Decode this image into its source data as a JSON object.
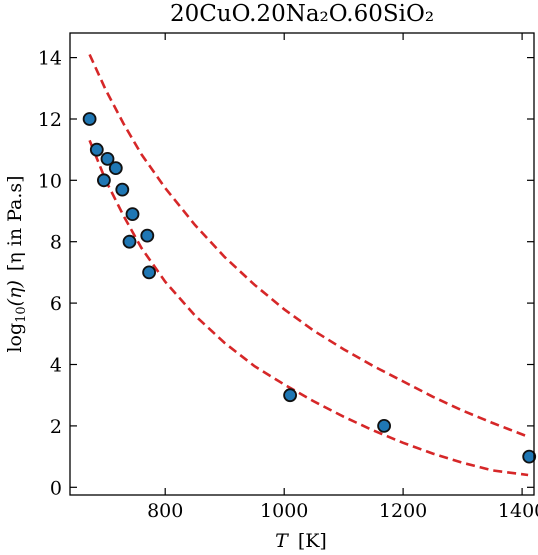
{
  "chart_data": {
    "type": "scatter",
    "title": "20CuO.20Na₂O.60SiO₂",
    "xlabel": {
      "symbol": "T",
      "unit": "[K]"
    },
    "ylabel": {
      "prefix": "log",
      "sub": "10",
      "arg": "(η)",
      "unit": "[η in Pa.s]"
    },
    "xlim": [
      640,
      1420
    ],
    "ylim": [
      -0.25,
      14.8
    ],
    "xticks": [
      800,
      1000,
      1200,
      1400
    ],
    "yticks": [
      0,
      2,
      4,
      6,
      8,
      10,
      12,
      14
    ],
    "xtick_labels": [
      "800",
      "1000",
      "1200",
      "1400"
    ],
    "ytick_labels": [
      "0",
      "2",
      "4",
      "6",
      "8",
      "10",
      "12",
      "14"
    ],
    "grid": false,
    "colors": {
      "marker_fill": "#1f77b4",
      "marker_edge": "#111111",
      "bound_line": "#d62728",
      "axes": "#000000"
    },
    "points": [
      {
        "x": 673,
        "y": 12.0
      },
      {
        "x": 685,
        "y": 11.0
      },
      {
        "x": 697,
        "y": 10.0
      },
      {
        "x": 703,
        "y": 10.7
      },
      {
        "x": 717,
        "y": 10.4
      },
      {
        "x": 728,
        "y": 9.7
      },
      {
        "x": 740,
        "y": 8.0
      },
      {
        "x": 745,
        "y": 8.9
      },
      {
        "x": 770,
        "y": 8.2
      },
      {
        "x": 773,
        "y": 7.0
      },
      {
        "x": 1010,
        "y": 3.0
      },
      {
        "x": 1168,
        "y": 2.0
      },
      {
        "x": 1412,
        "y": 1.0
      }
    ],
    "bounds": [
      {
        "style": "dashed",
        "x": [
          673,
          700,
          730,
          760,
          800,
          850,
          900,
          950,
          1000,
          1050,
          1100,
          1150,
          1200,
          1250,
          1300,
          1350,
          1410
        ],
        "y": [
          14.1,
          12.95,
          11.85,
          10.85,
          9.75,
          8.55,
          7.5,
          6.6,
          5.8,
          5.1,
          4.5,
          3.95,
          3.45,
          2.95,
          2.5,
          2.1,
          1.65
        ]
      },
      {
        "style": "dashed",
        "x": [
          673,
          700,
          730,
          760,
          800,
          850,
          900,
          950,
          1000,
          1050,
          1100,
          1150,
          1200,
          1250,
          1300,
          1350,
          1410
        ],
        "y": [
          11.3,
          10.0,
          8.85,
          7.8,
          6.7,
          5.6,
          4.7,
          3.95,
          3.35,
          2.8,
          2.3,
          1.85,
          1.45,
          1.1,
          0.8,
          0.55,
          0.4
        ]
      }
    ]
  }
}
